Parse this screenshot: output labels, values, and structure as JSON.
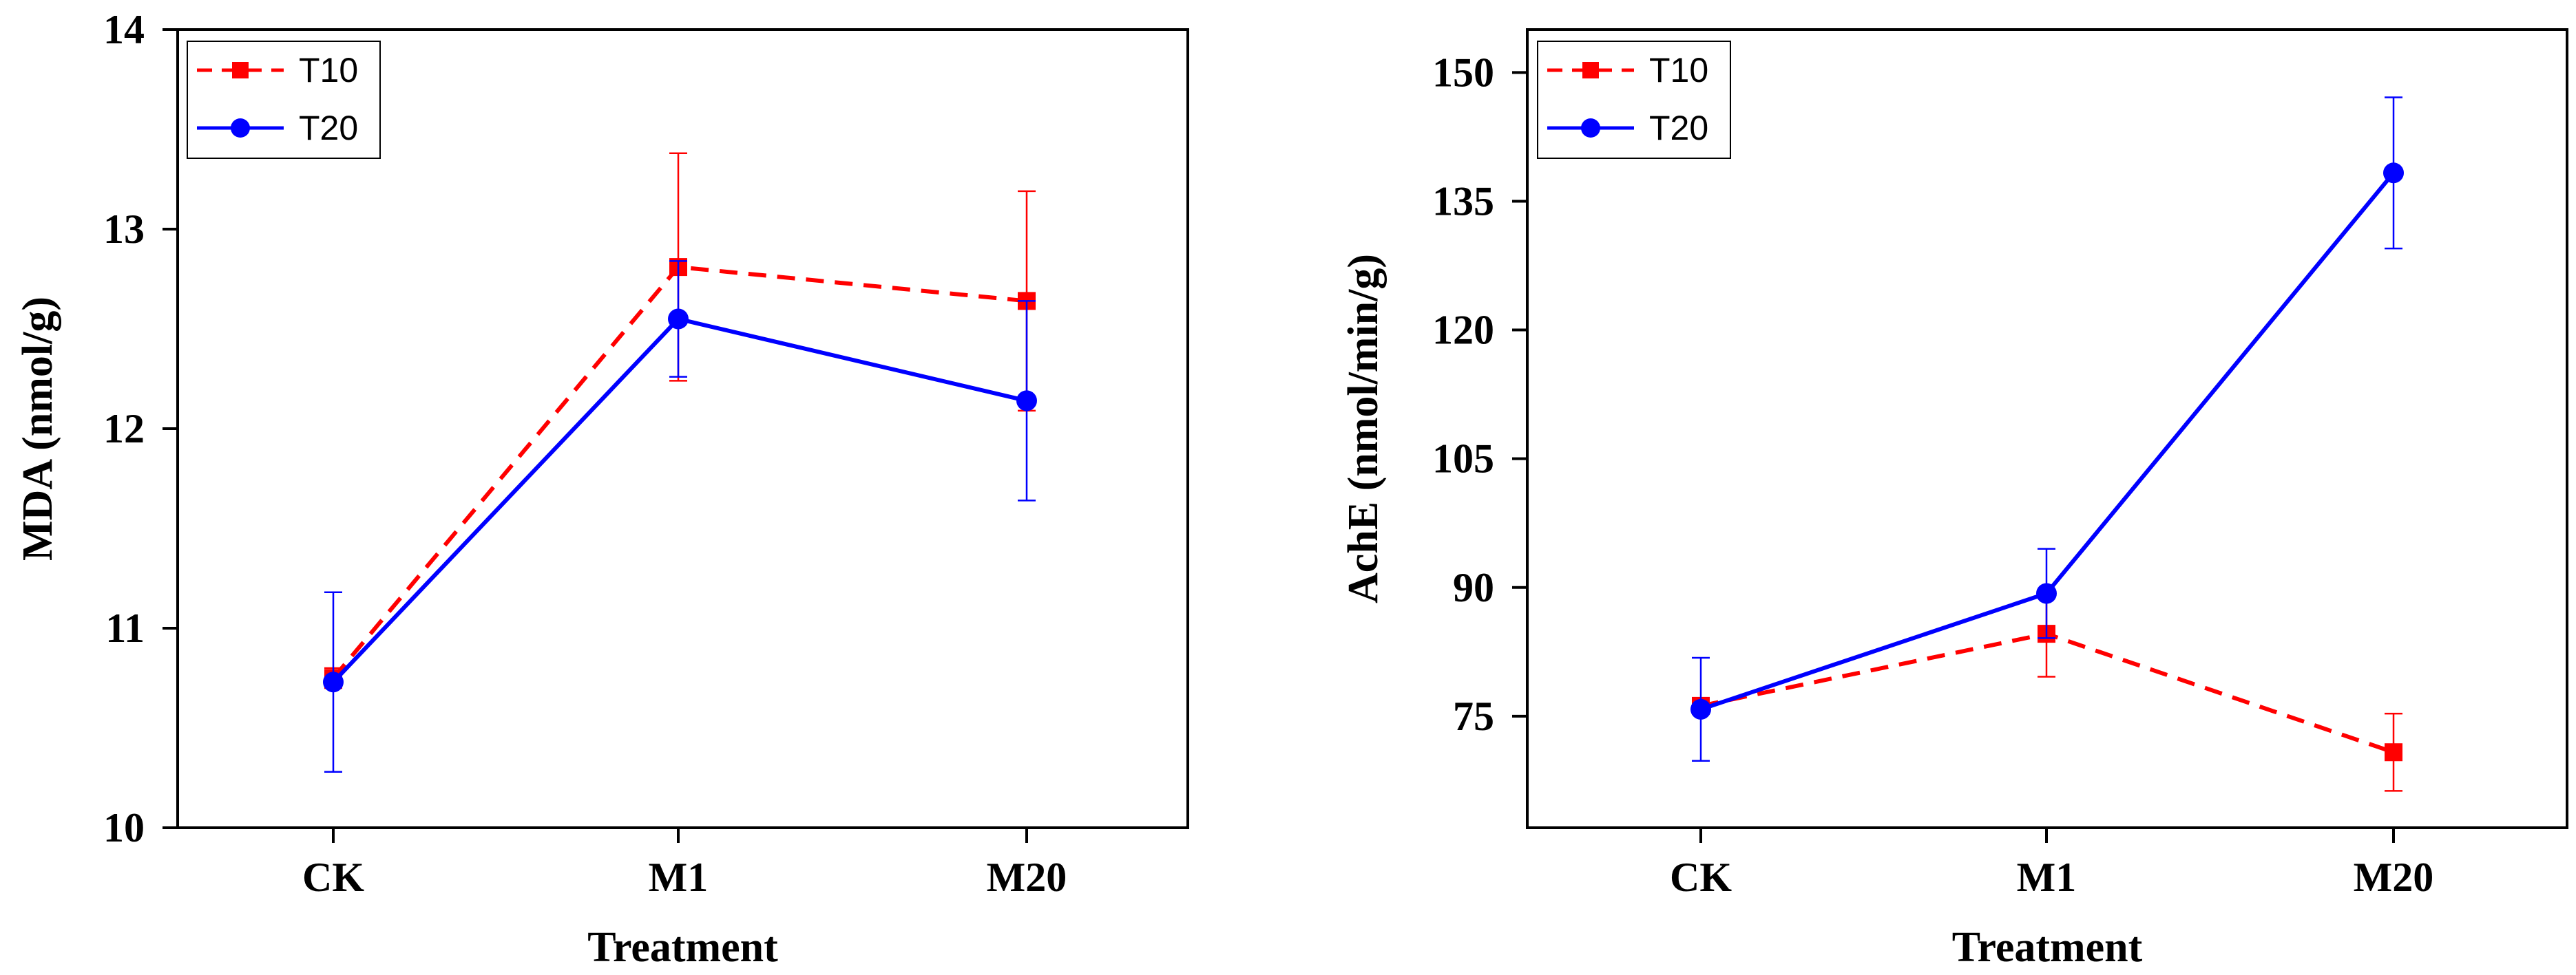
{
  "chart_data": [
    {
      "type": "line",
      "title": "",
      "xlabel": "Treatment",
      "ylabel": "MDA (nmol/g)",
      "categories": [
        "CK",
        "M1",
        "M20"
      ],
      "ylim": [
        10,
        14
      ],
      "yticks": [
        10,
        11,
        12,
        13,
        14
      ],
      "yticklabels": [
        "10",
        "11",
        "12",
        "13",
        "14"
      ],
      "legend_position": "top-left",
      "series": [
        {
          "name": "T10",
          "color": "#ff0000",
          "line": "dashed",
          "marker": "square",
          "values": [
            10.75,
            12.81,
            12.64
          ],
          "errors": [
            0.05,
            0.57,
            0.55
          ]
        },
        {
          "name": "T20",
          "color": "#0000ff",
          "line": "solid",
          "marker": "circle",
          "values": [
            10.73,
            12.55,
            12.14
          ],
          "errors": [
            0.45,
            0.29,
            0.5
          ]
        }
      ]
    },
    {
      "type": "line",
      "title": "",
      "xlabel": "Treatment",
      "ylabel": "AchE (nmol/min/g)",
      "categories": [
        "CK",
        "M1",
        "M20"
      ],
      "ylim": [
        62,
        155
      ],
      "yticks": [
        75,
        90,
        105,
        120,
        135,
        150
      ],
      "yticklabels": [
        "75",
        "90",
        "105",
        "120",
        "135",
        "150"
      ],
      "legend_position": "top-left",
      "series": [
        {
          "name": "T10",
          "color": "#ff0000",
          "line": "dashed",
          "marker": "square",
          "values": [
            76.2,
            84.6,
            70.8
          ],
          "errors": [
            0.3,
            5.0,
            4.5
          ]
        },
        {
          "name": "T20",
          "color": "#0000ff",
          "line": "solid",
          "marker": "circle",
          "values": [
            75.8,
            89.3,
            138.3
          ],
          "errors": [
            6.0,
            5.2,
            8.8
          ]
        }
      ]
    }
  ]
}
